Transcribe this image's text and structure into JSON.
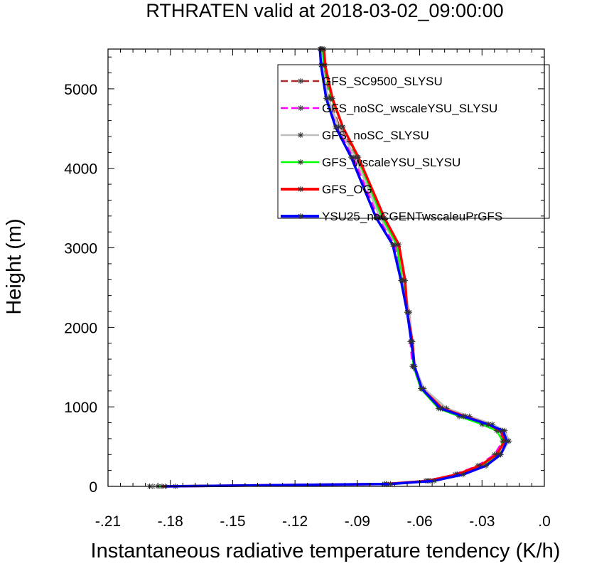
{
  "chart_data": {
    "type": "line",
    "title": "RTHRATEN valid at 2018-03-02_09:00:00",
    "xlabel": "Instantaneous radiative temperature tendency (K/h)",
    "ylabel": "Height (m)",
    "xlim": [
      -0.21,
      0.0
    ],
    "ylim": [
      0,
      5500
    ],
    "xticks": [
      -0.21,
      -0.18,
      -0.15,
      -0.12,
      -0.09,
      -0.06,
      -0.03,
      0.0
    ],
    "xtick_labels": [
      "-.21",
      "-.18",
      "-.15",
      "-.12",
      "-.09",
      "-.06",
      "-.03",
      ".0"
    ],
    "yticks": [
      0,
      1000,
      2000,
      3000,
      4000,
      5000
    ],
    "ytick_labels": [
      "0",
      "1000",
      "2000",
      "3000",
      "4000",
      "5000"
    ],
    "legend_position": "top-right",
    "series": [
      {
        "name": "GFS_SC9500_SLYSU",
        "color": "#a52a2a",
        "dash": "dashed",
        "x": [
          -0.1775,
          -0.077,
          -0.057,
          -0.042,
          -0.031,
          -0.023,
          -0.019,
          -0.021,
          -0.027,
          -0.038,
          -0.049,
          -0.059,
          -0.0625,
          -0.0635,
          -0.066,
          -0.068,
          -0.071,
          -0.078,
          -0.0905,
          -0.0985,
          -0.1035,
          -0.1065,
          -0.107
        ],
        "y": [
          0,
          30,
          70,
          150,
          260,
          400,
          570,
          700,
          780,
          880,
          980,
          1230,
          1510,
          1820,
          2190,
          2590,
          3040,
          3380,
          4140,
          4520,
          4880,
          5300,
          5500
        ]
      },
      {
        "name": "GFS_noSC_wscaleYSU_SLYSU",
        "color": "#ff00ff",
        "dash": "dashed",
        "x": [
          -0.1885,
          -0.077,
          -0.057,
          -0.043,
          -0.032,
          -0.024,
          -0.02,
          -0.022,
          -0.028,
          -0.039,
          -0.05,
          -0.059,
          -0.0635,
          -0.0645,
          -0.065,
          -0.068,
          -0.072,
          -0.08,
          -0.092,
          -0.1,
          -0.1045,
          -0.1075,
          -0.108
        ],
        "y": [
          0,
          30,
          70,
          150,
          260,
          400,
          570,
          700,
          780,
          880,
          980,
          1230,
          1510,
          1820,
          2190,
          2590,
          3040,
          3380,
          4140,
          4520,
          4880,
          5300,
          5500
        ]
      },
      {
        "name": "GFS_noSC_SLYSU",
        "color": "#bebebe",
        "dash": "solid",
        "x": [
          -0.19,
          -0.076,
          -0.056,
          -0.042,
          -0.03,
          -0.021,
          -0.017,
          -0.019,
          -0.025,
          -0.036,
          -0.047,
          -0.058,
          -0.0625,
          -0.0635,
          -0.065,
          -0.068,
          -0.071,
          -0.079,
          -0.091,
          -0.099,
          -0.104,
          -0.107,
          -0.1075
        ],
        "y": [
          0,
          30,
          70,
          150,
          260,
          400,
          570,
          700,
          780,
          880,
          980,
          1230,
          1510,
          1820,
          2190,
          2590,
          3040,
          3380,
          4140,
          4520,
          4880,
          5300,
          5500
        ]
      },
      {
        "name": "GFS_wscaleYSU_SLYSU",
        "color": "#00ff00",
        "dash": "solid",
        "x": [
          -0.186,
          -0.076,
          -0.055,
          -0.041,
          -0.03,
          -0.022,
          -0.02,
          -0.023,
          -0.03,
          -0.041,
          -0.051,
          -0.0595,
          -0.063,
          -0.064,
          -0.066,
          -0.0685,
          -0.071,
          -0.078,
          -0.09,
          -0.097,
          -0.1025,
          -0.106,
          -0.107
        ],
        "y": [
          0,
          30,
          70,
          150,
          260,
          400,
          570,
          700,
          780,
          880,
          980,
          1230,
          1510,
          1820,
          2190,
          2590,
          3040,
          3380,
          4140,
          4520,
          4880,
          5300,
          5500
        ]
      },
      {
        "name": "GFS_OG",
        "color": "#ff0000",
        "dash": "solid",
        "x": [
          -0.184,
          -0.076,
          -0.056,
          -0.042,
          -0.031,
          -0.023,
          -0.019,
          -0.021,
          -0.027,
          -0.038,
          -0.049,
          -0.059,
          -0.0625,
          -0.0635,
          -0.066,
          -0.067,
          -0.07,
          -0.077,
          -0.0895,
          -0.097,
          -0.102,
          -0.1055,
          -0.106
        ],
        "y": [
          0,
          30,
          70,
          150,
          260,
          400,
          570,
          700,
          780,
          880,
          980,
          1230,
          1510,
          1820,
          2190,
          2590,
          3040,
          3380,
          4140,
          4520,
          4880,
          5300,
          5500
        ]
      },
      {
        "name": "YSU25_noCGENTwscaleuPrGFS",
        "color": "#0000ff",
        "dash": "solid",
        "x": [
          -0.1825,
          -0.074,
          -0.053,
          -0.039,
          -0.028,
          -0.021,
          -0.018,
          -0.02,
          -0.027,
          -0.039,
          -0.05,
          -0.059,
          -0.0625,
          -0.064,
          -0.066,
          -0.069,
          -0.073,
          -0.081,
          -0.093,
          -0.1005,
          -0.105,
          -0.1075,
          -0.108
        ],
        "y": [
          0,
          30,
          70,
          150,
          260,
          400,
          570,
          700,
          780,
          880,
          980,
          1230,
          1510,
          1820,
          2190,
          2590,
          3040,
          3380,
          4140,
          4520,
          4880,
          5300,
          5500
        ]
      }
    ]
  }
}
